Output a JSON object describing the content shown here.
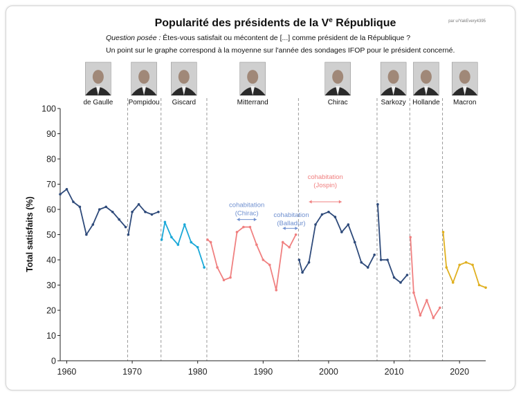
{
  "chart_data": {
    "type": "line",
    "title_main": "Popularité des présidents de la V",
    "title_sup": "e",
    "title_end": " République",
    "credit": "par u/YakEvery4395",
    "subtitle_label": "Question posée :",
    "subtitle_question": " Êtes-vous satisfait ou mécontent de [...] comme président de la République ?",
    "subtitle_line2": "Un point sur le graphe correspond à la moyenne sur l'année des sondages IFOP pour le président concerné.",
    "ylabel": "Total satisfaits (%)",
    "xlim": [
      1959,
      2024
    ],
    "ylim": [
      0,
      100
    ],
    "yticks": [
      0,
      10,
      20,
      30,
      40,
      50,
      60,
      70,
      80,
      90,
      100
    ],
    "xticks": [
      1960,
      1970,
      1980,
      1990,
      2000,
      2010,
      2020
    ],
    "separators": [
      1969.3,
      1974.4,
      1981.4,
      1995.4,
      2007.4,
      2012.4,
      2017.4
    ],
    "series": [
      {
        "name": "de Gaulle",
        "color": "#2e4a7a",
        "x": [
          1959,
          1960,
          1961,
          1962,
          1963,
          1964,
          1965,
          1966,
          1967,
          1968,
          1969
        ],
        "y": [
          66,
          68,
          63,
          61,
          50,
          54,
          60,
          61,
          59,
          56,
          53
        ]
      },
      {
        "name": "Pompidou",
        "color": "#2e4a7a",
        "x": [
          1969.4,
          1970,
          1971,
          1972,
          1973,
          1974
        ],
        "y": [
          50,
          59,
          62,
          59,
          58,
          59
        ]
      },
      {
        "name": "Giscard",
        "color": "#1aa8d8",
        "x": [
          1974.5,
          1975,
          1976,
          1977,
          1978,
          1979,
          1980,
          1981
        ],
        "y": [
          48,
          55,
          49,
          46,
          54,
          47,
          45,
          37
        ]
      },
      {
        "name": "Mitterrand",
        "color": "#f08080",
        "x": [
          1981.5,
          1982,
          1983,
          1984,
          1985,
          1986,
          1987,
          1988,
          1989,
          1990,
          1991,
          1992,
          1993,
          1994,
          1995
        ],
        "y": [
          48,
          47,
          37,
          32,
          33,
          51,
          53,
          53,
          46,
          40,
          38,
          28,
          47,
          45,
          50
        ]
      },
      {
        "name": "Chirac",
        "color": "#2e4a7a",
        "x": [
          1995.5,
          1996,
          1997,
          1998,
          1999,
          2000,
          2001,
          2002,
          2003,
          2004,
          2005,
          2006,
          2007
        ],
        "y": [
          40,
          35,
          39,
          54,
          58,
          59,
          57,
          51,
          54,
          47,
          39,
          37,
          42
        ]
      },
      {
        "name": "Sarkozy",
        "color": "#2e4a7a",
        "x": [
          2007.5,
          2008,
          2009,
          2010,
          2011,
          2012
        ],
        "y": [
          62,
          40,
          40,
          33,
          31,
          34
        ]
      },
      {
        "name": "Hollande",
        "color": "#f08080",
        "x": [
          2012.5,
          2013,
          2014,
          2015,
          2016,
          2017
        ],
        "y": [
          49,
          27,
          18,
          24,
          17,
          21
        ]
      },
      {
        "name": "Macron",
        "color": "#e0b020",
        "x": [
          2017.5,
          2018,
          2019,
          2020,
          2021,
          2022,
          2023,
          2024
        ],
        "y": [
          51,
          37,
          31,
          38,
          39,
          38,
          30,
          29
        ]
      }
    ],
    "presidents": [
      {
        "name": "de Gaulle",
        "year": 1964.8
      },
      {
        "name": "Pompidou",
        "year": 1971.8
      },
      {
        "name": "Giscard",
        "year": 1977.9
      },
      {
        "name": "Mitterrand",
        "year": 1988.4
      },
      {
        "name": "Chirac",
        "year": 2001.4
      },
      {
        "name": "Sarkozy",
        "year": 2009.9
      },
      {
        "name": "Hollande",
        "year": 2014.9
      },
      {
        "name": "Macron",
        "year": 2020.8
      }
    ],
    "annotations": [
      {
        "lines": [
          "cohabitation",
          "(Chirac)"
        ],
        "color": "#6e8fcf",
        "x": 1987.5,
        "y": 61,
        "arrow_from": 1986,
        "arrow_to": 1989,
        "arrow_y": 56,
        "arrow_position": "below"
      },
      {
        "lines": [
          "cohabitation",
          "(Balladur)"
        ],
        "color": "#6e8fcf",
        "x": 1994.3,
        "y": 57,
        "arrow_from": 1993,
        "arrow_to": 1995.3,
        "arrow_y": 52.5,
        "arrow_position": "below"
      },
      {
        "lines": [
          "cohabitation",
          "(Jospin)"
        ],
        "color": "#f08080",
        "x": 1999.5,
        "y": 72,
        "arrow_from": 1997,
        "arrow_to": 2002,
        "arrow_y": 63,
        "arrow_position": "below"
      }
    ]
  }
}
